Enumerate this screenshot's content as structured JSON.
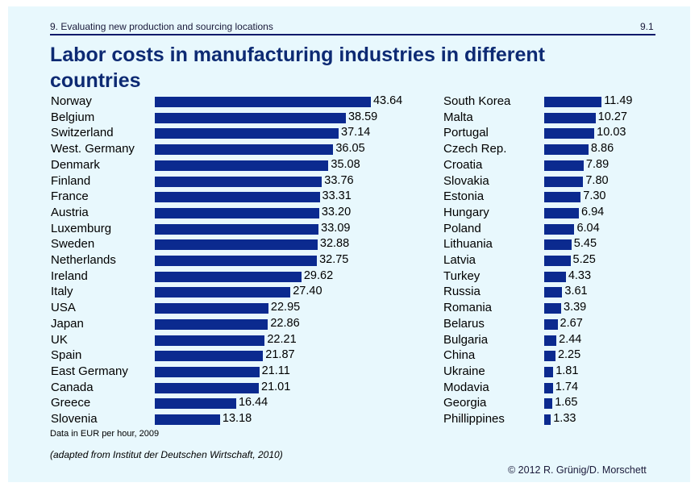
{
  "header": {
    "section": "9. Evaluating new production and sourcing locations",
    "page": "9.1",
    "title": "Labor costs in manufacturing industries in different countries"
  },
  "footer": {
    "note": "Data in EUR per hour, 2009",
    "source": "(adapted from Institut der Deutschen Wirtschaft, 2010)",
    "copyright": "© 2012 R. Grünig/D. Morschett"
  },
  "colors": {
    "bar": "#0b2a8f",
    "title": "#0d2a73",
    "background": "#e8f8fd"
  },
  "chart_data": [
    {
      "type": "bar",
      "orientation": "horizontal",
      "title": "Labor costs in manufacturing industries in different countries",
      "unit": "EUR per hour, 2009",
      "categories": [
        "Norway",
        "Belgium",
        "Switzerland",
        "West. Germany",
        "Denmark",
        "Finland",
        "France",
        "Austria",
        "Luxemburg",
        "Sweden",
        "Netherlands",
        "Ireland",
        "Italy",
        "USA",
        "Japan",
        "UK",
        "Spain",
        "East Germany",
        "Canada",
        "Greece",
        "Slovenia"
      ],
      "values": [
        43.64,
        38.59,
        37.14,
        36.05,
        35.08,
        33.76,
        33.31,
        33.2,
        33.09,
        32.88,
        32.75,
        29.62,
        27.4,
        22.95,
        22.86,
        22.21,
        21.87,
        21.11,
        21.01,
        16.44,
        13.18
      ],
      "labels": [
        "43.64",
        "38.59",
        "37.14",
        "36.05",
        "35.08",
        "33.76",
        "33.31",
        "33.20",
        "33.09",
        "32.88",
        "32.75",
        "29.62",
        "27.40",
        "22.95",
        "22.86",
        "22.21",
        "21.87",
        "21.11",
        "21.01",
        "16.44",
        "13.18"
      ]
    },
    {
      "type": "bar",
      "orientation": "horizontal",
      "unit": "EUR per hour, 2009",
      "categories": [
        "South Korea",
        "Malta",
        "Portugal",
        "Czech Rep.",
        "Croatia",
        "Slovakia",
        "Estonia",
        "Hungary",
        "Poland",
        "Lithuania",
        "Latvia",
        "Turkey",
        "Russia",
        "Romania",
        "Belarus",
        "Bulgaria",
        "China",
        "Ukraine",
        "Modavia",
        "Georgia",
        "Phillippines"
      ],
      "values": [
        11.49,
        10.27,
        10.03,
        8.86,
        7.89,
        7.8,
        7.3,
        6.94,
        6.04,
        5.45,
        5.25,
        4.33,
        3.61,
        3.39,
        2.67,
        2.44,
        2.25,
        1.81,
        1.74,
        1.65,
        1.33
      ],
      "labels": [
        "11.49",
        "10.27",
        "10.03",
        "8.86",
        "7.89",
        "7.80",
        "7.30",
        "6.94",
        "6.04",
        "5.45",
        "5.25",
        "4.33",
        "3.61",
        "3.39",
        "2.67",
        "2.44",
        "2.25",
        "1.81",
        "1.74",
        "1.65",
        "1.33"
      ]
    }
  ]
}
